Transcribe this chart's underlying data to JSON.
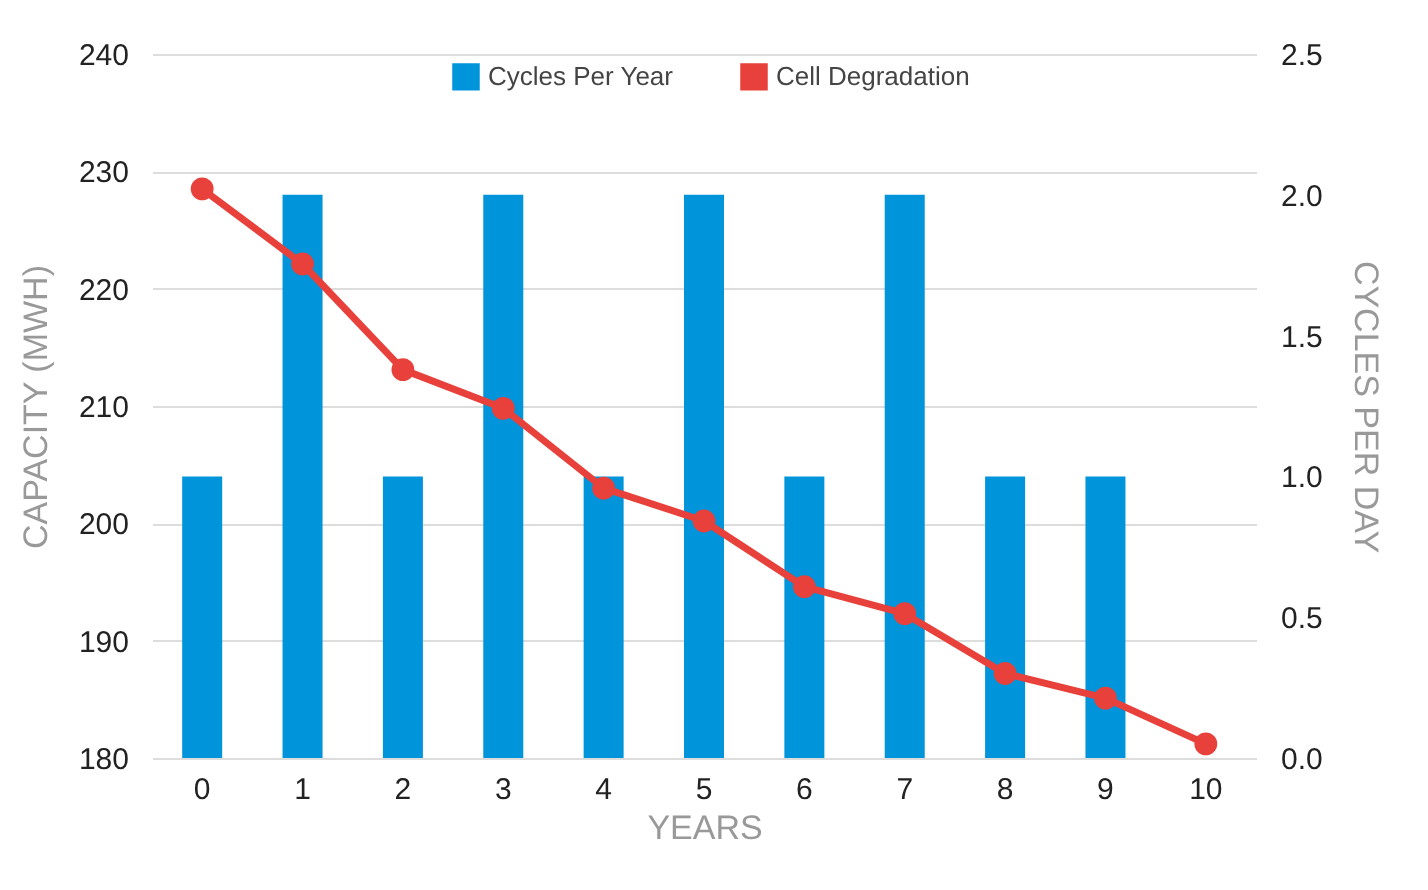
{
  "chart_data": {
    "type": "bar",
    "categories": [
      "0",
      "1",
      "2",
      "3",
      "4",
      "5",
      "6",
      "7",
      "8",
      "9",
      "10"
    ],
    "xlabel": "YEARS",
    "ylabel": "CAPACITY (MWH)",
    "y2label": "CYCLES PER DAY",
    "series": [
      {
        "name": "Cycles Per Year",
        "axis": "y2",
        "color": "#0095da",
        "values": [
          1,
          2,
          1,
          2,
          1,
          2,
          1,
          2,
          1,
          1,
          null
        ]
      },
      {
        "name": "Cell Degradation",
        "type": "line",
        "axis": "y",
        "color": "#e8403a",
        "values": [
          228.5,
          222.1,
          213.1,
          209.8,
          203.0,
          200.2,
          194.6,
          192.3,
          187.2,
          185.1,
          181.2
        ]
      }
    ],
    "ylim": [
      180,
      240
    ],
    "yticks": [
      180,
      190,
      200,
      210,
      220,
      230,
      240
    ],
    "y2lim": [
      0,
      2.5
    ],
    "y2ticks": [
      {
        "value": 0,
        "label": "0.0"
      },
      {
        "value": 0.5,
        "label": "0.5"
      },
      {
        "value": 1,
        "label": "1.0"
      },
      {
        "value": 1.5,
        "label": "1.5"
      },
      {
        "value": 2,
        "label": "2.0"
      },
      2.5
    ],
    "grid": "y",
    "legend": "top",
    "marker": "circle",
    "line_style": "solid"
  }
}
